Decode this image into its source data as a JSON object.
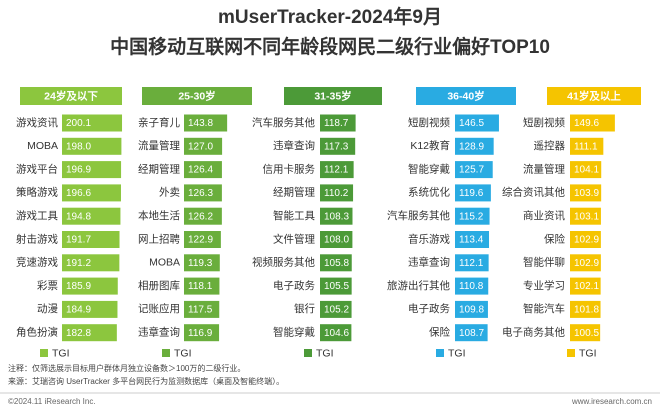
{
  "title": [
    "mUserTracker-2024年9月",
    "中国移动互联网不同年龄段网民二级行业偏好TOP10"
  ],
  "notes": [
    "注释：仅筛选展示目标用户群体月独立设备数＞100万的二级行业。",
    "来源：艾瑞咨询 UserTracker 多平台网民行为监测数据库（桌面及智能终端）。"
  ],
  "footer": {
    "left": "©2024.11 iResearch Inc.",
    "right": "www.iresearch.com.cn"
  },
  "chart_data": [
    {
      "type": "bar",
      "title": "24岁及以下",
      "categories": [
        "游戏资讯",
        "MOBA",
        "游戏平台",
        "策略游戏",
        "游戏工具",
        "射击游戏",
        "竞速游戏",
        "彩票",
        "动漫",
        "角色扮演"
      ],
      "series": [
        {
          "name": "TGI",
          "color": "#8cc63e",
          "values": [
            200.1,
            198.0,
            196.9,
            196.6,
            194.8,
            191.7,
            191.2,
            185.9,
            184.9,
            182.8
          ],
          "value_labels": [
            "200.1",
            "198.0",
            "196.9",
            "196.6",
            "194.8",
            "191.7",
            "191.2",
            "185.9",
            "184.9",
            "182.8"
          ]
        }
      ]
    },
    {
      "type": "bar",
      "title": "25-30岁",
      "categories": [
        "亲子育儿",
        "流量管理",
        "经期管理",
        "外卖",
        "本地生活",
        "网上招聘",
        "MOBA",
        "相册图库",
        "记账应用",
        "违章查询"
      ],
      "series": [
        {
          "name": "TGI",
          "color": "#6aae3c",
          "values": [
            143.8,
            127.0,
            126.4,
            126.3,
            126.2,
            122.9,
            119.3,
            118.1,
            117.5,
            116.9
          ],
          "value_labels": [
            "143.8",
            "127.0",
            "126.4",
            "126.3",
            "126.2",
            "122.9",
            "119.3",
            "118.1",
            "117.5",
            "116.9"
          ]
        }
      ]
    },
    {
      "type": "bar",
      "title": "31-35岁",
      "categories": [
        "汽车服务其他",
        "违章查询",
        "信用卡服务",
        "经期管理",
        "智能工具",
        "文件管理",
        "视频服务其他",
        "电子政务",
        "银行",
        "智能穿戴"
      ],
      "series": [
        {
          "name": "TGI",
          "color": "#4c9a38",
          "values": [
            118.7,
            117.3,
            112.1,
            110.2,
            108.3,
            108.0,
            105.8,
            105.5,
            105.2,
            104.6
          ],
          "value_labels": [
            "118.7",
            "117.3",
            "112.1",
            "110.2",
            "108.3",
            "108.0",
            "105.8",
            "105.5",
            "105.2",
            "104.6"
          ]
        }
      ]
    },
    {
      "type": "bar",
      "title": "36-40岁",
      "categories": [
        "短剧视频",
        "K12教育",
        "智能穿戴",
        "系统优化",
        "汽车服务其他",
        "音乐游戏",
        "违章查询",
        "旅游出行其他",
        "电子政务",
        "保险"
      ],
      "series": [
        {
          "name": "TGI",
          "color": "#29abe2",
          "values": [
            146.5,
            128.9,
            125.7,
            119.6,
            115.2,
            113.4,
            112.1,
            110.8,
            109.8,
            108.7
          ],
          "value_labels": [
            "146.5",
            "128.9",
            "125.7",
            "119.6",
            "115.2",
            "113.4",
            "112.1",
            "110.8",
            "109.8",
            "108.7"
          ]
        }
      ]
    },
    {
      "type": "bar",
      "title": "41岁及以上",
      "categories": [
        "短剧视频",
        "遥控器",
        "流量管理",
        "综合资讯其他",
        "商业资讯",
        "保险",
        "智能伴聊",
        "专业学习",
        "智能汽车",
        "电子商务其他"
      ],
      "series": [
        {
          "name": "TGI",
          "color": "#f5c400",
          "values": [
            149.6,
            111.1,
            104.1,
            103.9,
            103.1,
            102.9,
            102.9,
            102.1,
            101.8,
            100.5
          ],
          "value_labels": [
            "149.6",
            "111.1",
            "104.1",
            "103.9",
            "103.1",
            "102.9",
            "102.9",
            "102.1",
            "101.8",
            "100.5"
          ]
        }
      ]
    }
  ]
}
